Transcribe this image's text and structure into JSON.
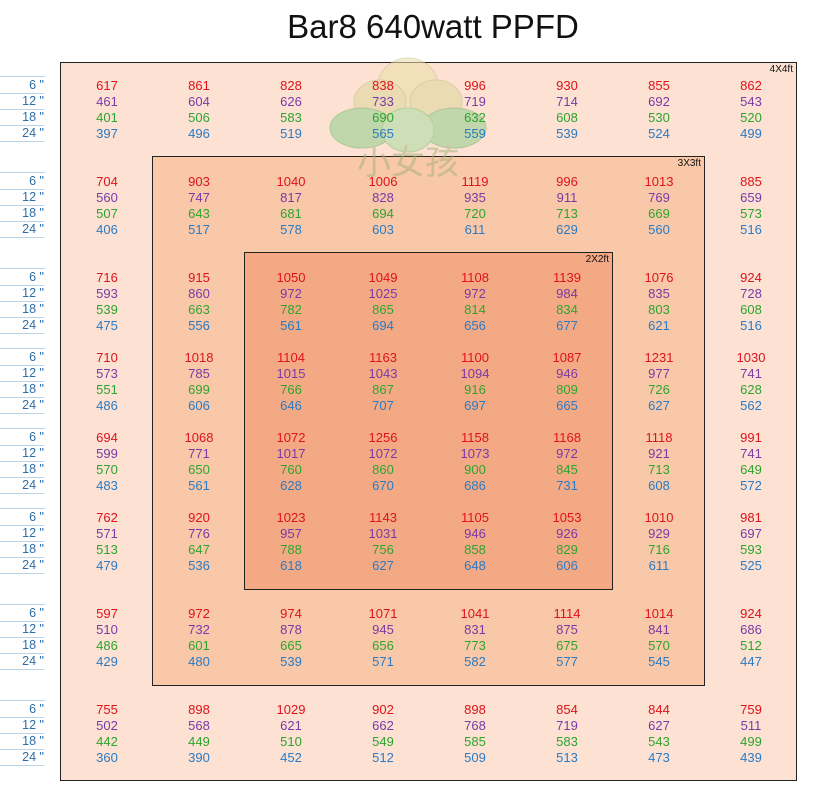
{
  "title": "Bar8 640watt PPFD",
  "zones": [
    {
      "id": "4x4",
      "label": "4X4ft"
    },
    {
      "id": "3x3",
      "label": "3X3ft"
    },
    {
      "id": "2x2",
      "label": "2X2ft"
    }
  ],
  "watermark": {
    "text": "小女孩"
  },
  "colors": {
    "h6": "#e0121a",
    "h12": "#7a3aa6",
    "h18": "#2ea52e",
    "h24": "#2a7bc4",
    "zone4": "#fde1d2",
    "zone3": "#f8c8a8",
    "zone2": "#f3a984"
  },
  "chart_data": {
    "type": "table",
    "title": "Bar8 640watt PPFD",
    "heights": [
      "6 \"",
      "12 \"",
      "18 \"",
      "24 \""
    ],
    "rows": [
      {
        "6": [
          617,
          861,
          828,
          838,
          996,
          930,
          855,
          862
        ],
        "12": [
          461,
          604,
          626,
          733,
          719,
          714,
          692,
          543
        ],
        "18": [
          401,
          506,
          583,
          690,
          632,
          608,
          530,
          520
        ],
        "24": [
          397,
          496,
          519,
          565,
          559,
          539,
          524,
          499
        ]
      },
      {
        "6": [
          704,
          903,
          1040,
          1006,
          1119,
          996,
          1013,
          885
        ],
        "12": [
          560,
          747,
          817,
          828,
          935,
          911,
          769,
          659
        ],
        "18": [
          507,
          643,
          681,
          694,
          720,
          713,
          669,
          573
        ],
        "24": [
          406,
          517,
          578,
          603,
          611,
          629,
          560,
          516
        ]
      },
      {
        "6": [
          716,
          915,
          1050,
          1049,
          1108,
          1139,
          1076,
          924
        ],
        "12": [
          593,
          860,
          972,
          1025,
          972,
          984,
          835,
          728
        ],
        "18": [
          539,
          663,
          782,
          865,
          814,
          834,
          803,
          608
        ],
        "24": [
          475,
          556,
          561,
          694,
          656,
          677,
          621,
          516
        ]
      },
      {
        "6": [
          710,
          1018,
          1104,
          1163,
          1100,
          1087,
          1231,
          1030
        ],
        "12": [
          573,
          785,
          1015,
          1043,
          1094,
          946,
          977,
          741
        ],
        "18": [
          551,
          699,
          766,
          867,
          916,
          809,
          726,
          628
        ],
        "24": [
          486,
          606,
          646,
          707,
          697,
          665,
          627,
          562
        ]
      },
      {
        "6": [
          694,
          1068,
          1072,
          1256,
          1158,
          1168,
          1118,
          991
        ],
        "12": [
          599,
          771,
          1017,
          1072,
          1073,
          972,
          921,
          741
        ],
        "18": [
          570,
          650,
          760,
          860,
          900,
          845,
          713,
          649
        ],
        "24": [
          483,
          561,
          628,
          670,
          686,
          731,
          608,
          572
        ]
      },
      {
        "6": [
          762,
          920,
          1023,
          1143,
          1105,
          1053,
          1010,
          981
        ],
        "12": [
          571,
          776,
          957,
          1031,
          946,
          926,
          929,
          697
        ],
        "18": [
          513,
          647,
          788,
          756,
          858,
          829,
          716,
          593
        ],
        "24": [
          479,
          536,
          618,
          627,
          648,
          606,
          611,
          525
        ]
      },
      {
        "6": [
          597,
          972,
          974,
          1071,
          1041,
          1114,
          1014,
          924
        ],
        "12": [
          510,
          732,
          878,
          945,
          831,
          875,
          841,
          686
        ],
        "18": [
          486,
          601,
          665,
          656,
          773,
          675,
          570,
          512
        ],
        "24": [
          429,
          480,
          539,
          571,
          582,
          577,
          545,
          447
        ]
      },
      {
        "6": [
          755,
          898,
          1029,
          902,
          898,
          854,
          844,
          759
        ],
        "12": [
          502,
          568,
          621,
          662,
          768,
          719,
          627,
          511
        ],
        "18": [
          442,
          449,
          510,
          549,
          585,
          583,
          543,
          499
        ],
        "24": [
          360,
          390,
          452,
          512,
          509,
          513,
          473,
          439
        ]
      }
    ]
  }
}
